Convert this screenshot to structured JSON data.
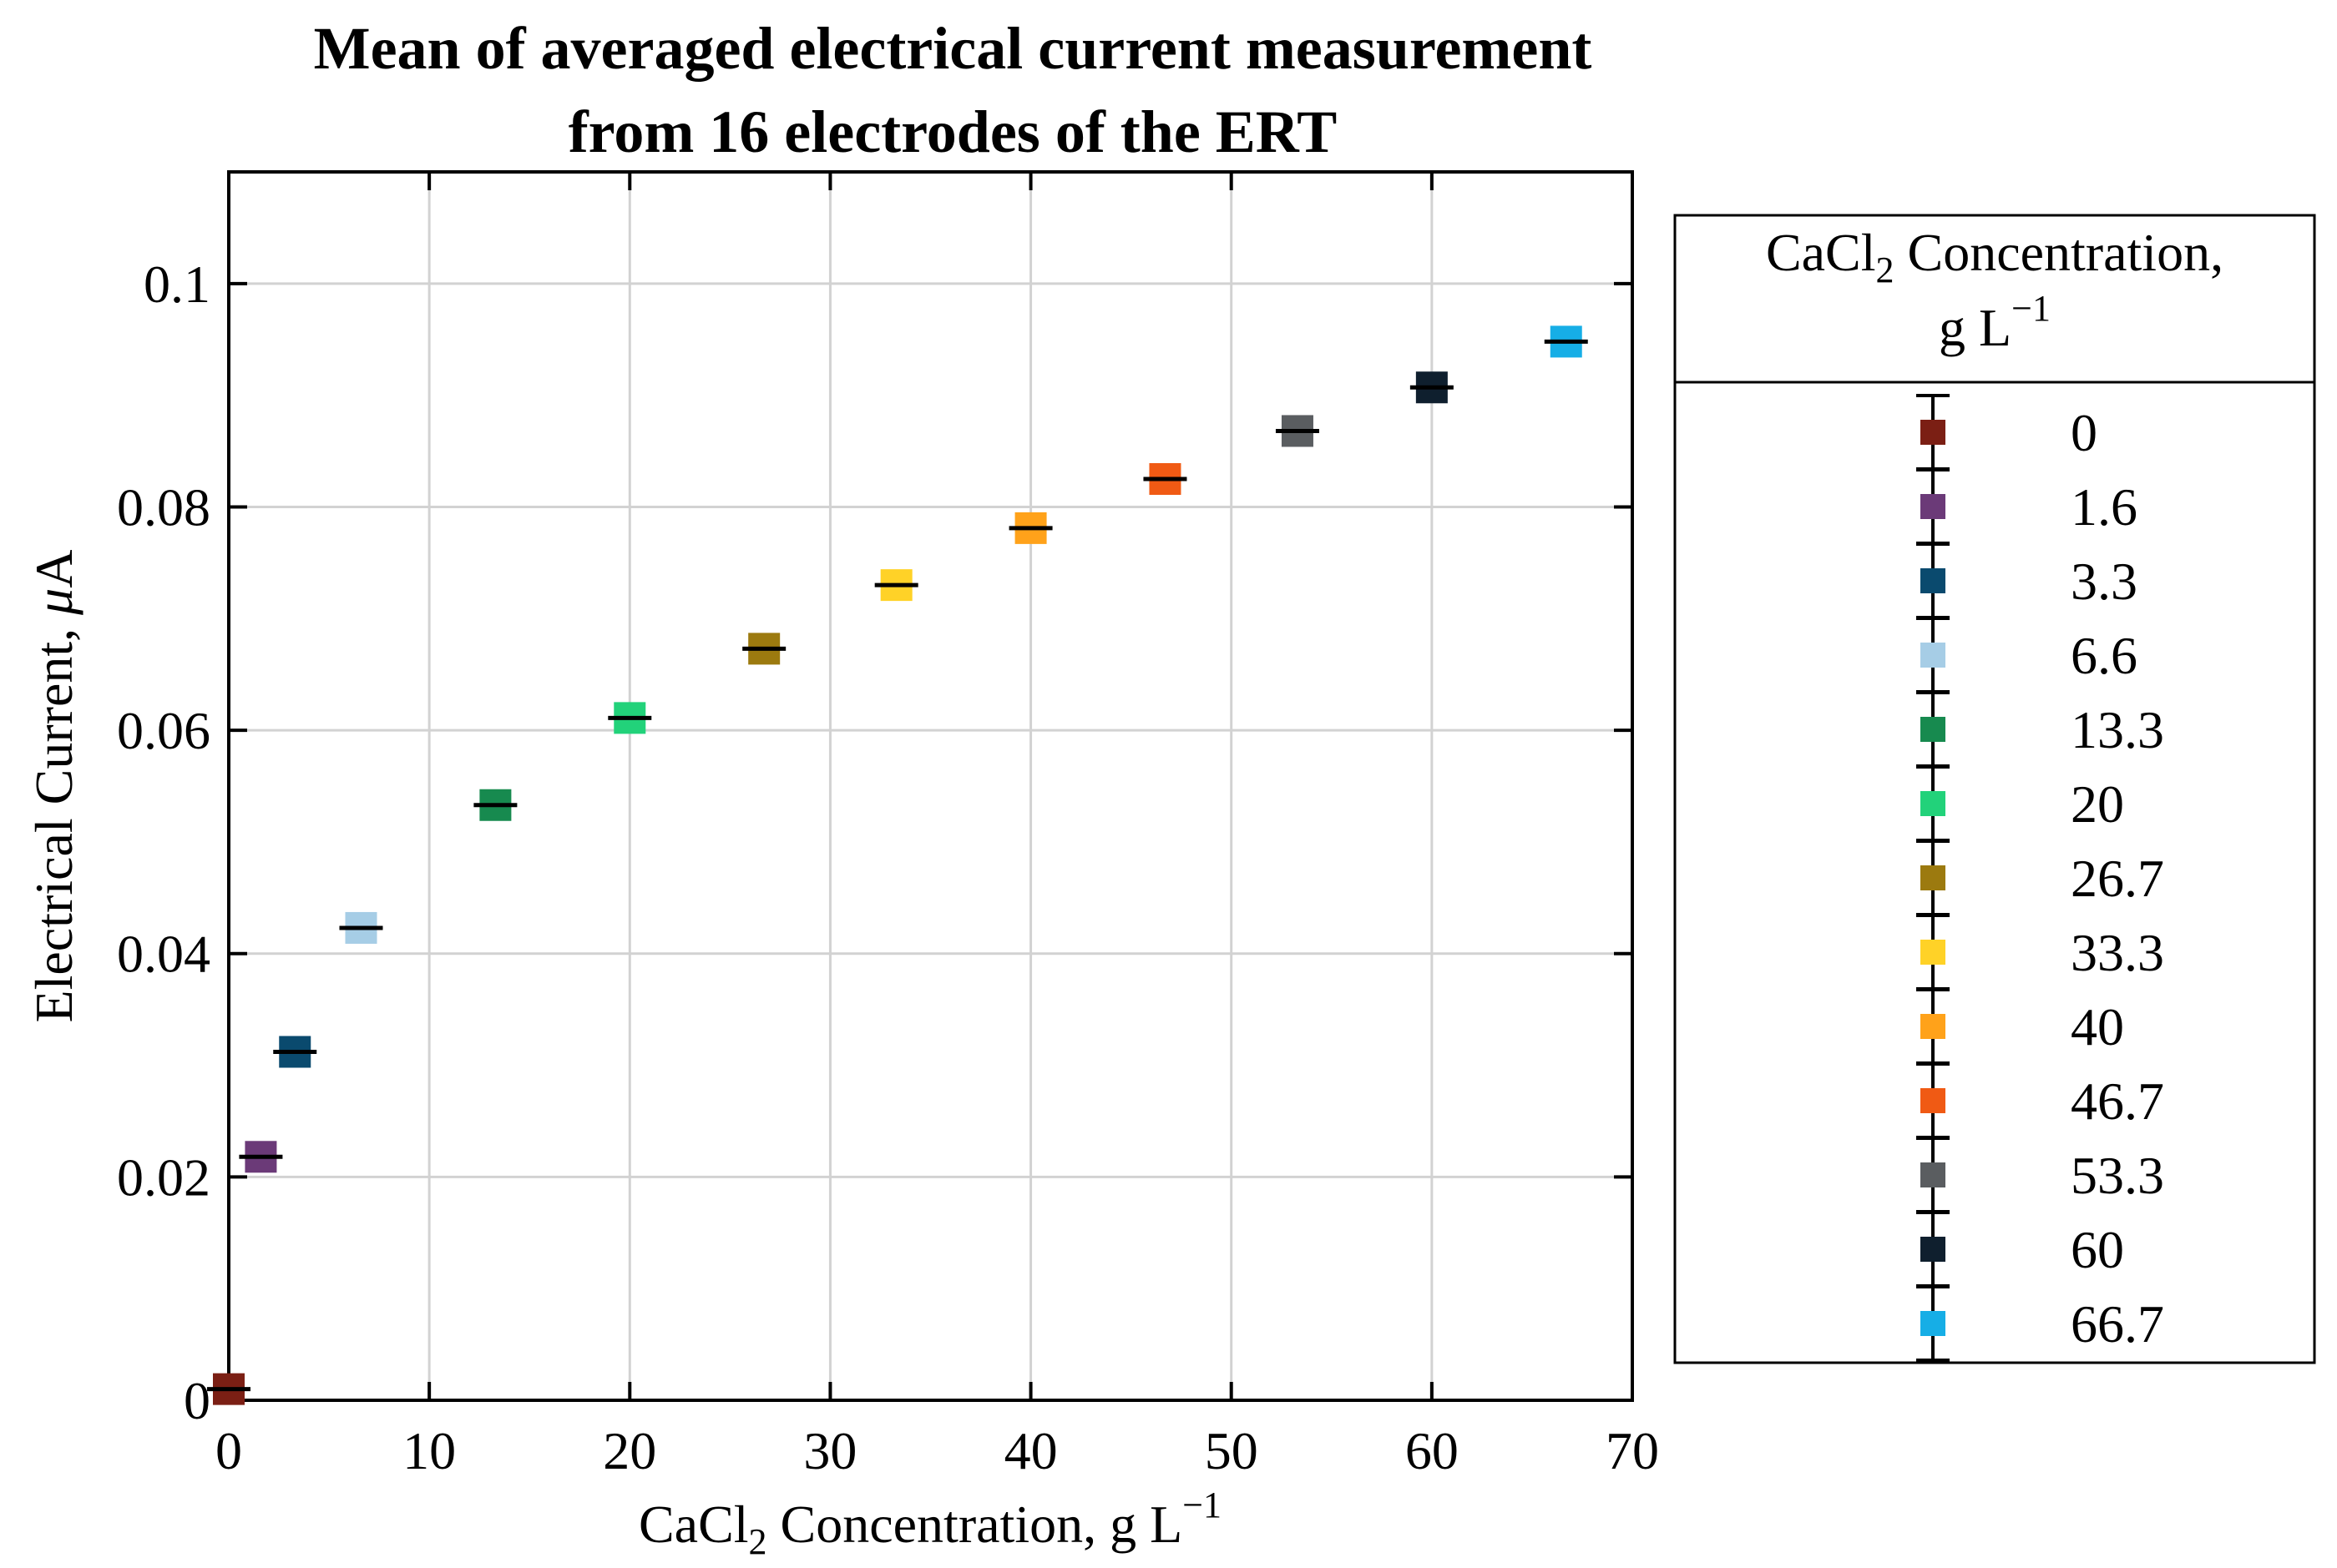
{
  "chart_data": {
    "type": "scatter",
    "title": [
      "Mean of averaged electrical current measurement",
      "from 16 electrodes of the ERT"
    ],
    "xlabel": {
      "prefix": "CaCl",
      "sub": "2",
      "mid": " Concentration, g L",
      "sup": "−1"
    },
    "ylabel": {
      "prefix": "Electrical Current, ",
      "unit_italic": "μ",
      "unit": "A"
    },
    "xlim": [
      0,
      70
    ],
    "ylim": [
      0,
      0.11
    ],
    "xticks": [
      0,
      10,
      20,
      30,
      40,
      50,
      60,
      70
    ],
    "xtick_labels": [
      "0",
      "10",
      "20",
      "30",
      "40",
      "50",
      "60",
      "70"
    ],
    "yticks": [
      0,
      0.02,
      0.04,
      0.06,
      0.08,
      0.1
    ],
    "ytick_labels": [
      "0",
      "0.02",
      "0.04",
      "0.06",
      "0.08",
      "0.1"
    ],
    "grid": true,
    "legend": {
      "placement": "right-outside",
      "title_line1": {
        "prefix": "CaCl",
        "sub": "2",
        "suffix": " Concentration,"
      },
      "title_line2": {
        "prefix": "g L",
        "sup": "−1"
      }
    },
    "series": [
      {
        "name": "0",
        "x": 0,
        "y": 0.001,
        "color": "#7b1f14"
      },
      {
        "name": "1.6",
        "x": 1.6,
        "y": 0.0218,
        "color": "#6b3a78"
      },
      {
        "name": "3.3",
        "x": 3.3,
        "y": 0.0312,
        "color": "#0a4a6e"
      },
      {
        "name": "6.6",
        "x": 6.6,
        "y": 0.0423,
        "color": "#a6cde6"
      },
      {
        "name": "13.3",
        "x": 13.3,
        "y": 0.0533,
        "color": "#178a4f"
      },
      {
        "name": "20",
        "x": 20,
        "y": 0.0611,
        "color": "#22d27a"
      },
      {
        "name": "26.7",
        "x": 26.7,
        "y": 0.0673,
        "color": "#9c7a0f"
      },
      {
        "name": "33.3",
        "x": 33.3,
        "y": 0.073,
        "color": "#ffd227"
      },
      {
        "name": "40",
        "x": 40,
        "y": 0.0781,
        "color": "#ffa21a"
      },
      {
        "name": "46.7",
        "x": 46.7,
        "y": 0.0825,
        "color": "#f05a14"
      },
      {
        "name": "53.3",
        "x": 53.3,
        "y": 0.0868,
        "color": "#5a5d60"
      },
      {
        "name": "60",
        "x": 60,
        "y": 0.0907,
        "color": "#0f1f2e"
      },
      {
        "name": "66.7",
        "x": 66.7,
        "y": 0.0948,
        "color": "#16aee6"
      }
    ]
  }
}
